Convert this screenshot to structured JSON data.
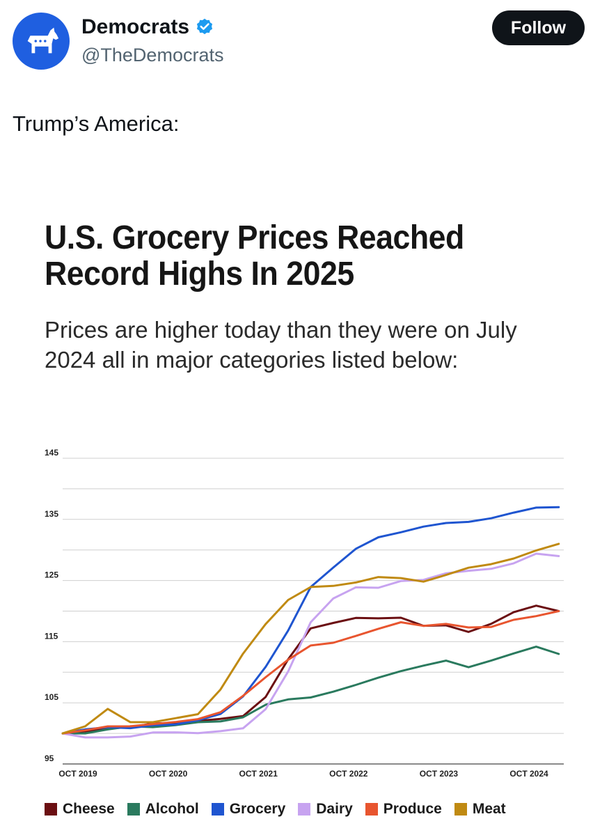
{
  "tweet": {
    "display_name": "Democrats",
    "handle": "@TheDemocrats",
    "follow_label": "Follow",
    "text": "Trump’s America:",
    "avatar_icon": "donkey-icon",
    "verified_icon": "verified-badge-icon",
    "accent_color": "#1f5fe0"
  },
  "graphic": {
    "headline": "U.S. Grocery Prices Reached Record Highs In 2025",
    "subhead": "Prices are higher today than they were on July 2024 all in major categories listed below:"
  },
  "chart_data": {
    "type": "line",
    "title": "U.S. Grocery Prices Reached Record Highs In 2025",
    "subtitle": "Prices are higher today than they were on July 2024 all in major categories listed below:",
    "xlabel": "",
    "ylabel": "",
    "x_tick_labels": [
      "OCT 2019",
      "OCT 2020",
      "OCT 2021",
      "OCT 2022",
      "OCT 2023",
      "OCT 2024"
    ],
    "y_tick_labels": [
      "145",
      "135",
      "125",
      "115",
      "105",
      "95"
    ],
    "y_ticks": [
      145,
      135,
      125,
      115,
      105,
      95
    ],
    "ylim": [
      95,
      145
    ],
    "grid": true,
    "legend_position": "bottom",
    "x": [
      "2019-10",
      "2020-01",
      "2020-04",
      "2020-07",
      "2020-10",
      "2021-01",
      "2021-04",
      "2021-07",
      "2021-10",
      "2022-01",
      "2022-04",
      "2022-07",
      "2022-10",
      "2023-01",
      "2023-04",
      "2023-07",
      "2023-10",
      "2024-01",
      "2024-04",
      "2024-07",
      "2024-10",
      "2025-01",
      "2025-04"
    ],
    "series": [
      {
        "name": "Cheese",
        "color": "#6b0f12",
        "values": [
          100,
          100.5,
          101,
          101,
          101.5,
          101.5,
          102,
          102.5,
          103,
          106,
          112,
          117,
          118,
          119,
          119,
          119,
          117.5,
          117.5,
          116.5,
          118,
          120,
          121,
          120
        ]
      },
      {
        "name": "Alcohol",
        "color": "#2a7a5e",
        "values": [
          100,
          100,
          100.5,
          101,
          101,
          101.5,
          102,
          102,
          102.5,
          104.5,
          105.5,
          106,
          107,
          108,
          109,
          110,
          111,
          112,
          111,
          112,
          113,
          114,
          113
        ]
      },
      {
        "name": "Grocery",
        "color": "#1f55d0",
        "values": [
          100,
          100.5,
          101,
          101,
          101.5,
          101.5,
          102,
          103,
          106,
          111,
          117,
          124,
          127,
          130,
          132,
          133,
          134,
          134.5,
          134.5,
          135,
          136,
          137,
          137
        ]
      },
      {
        "name": "Dairy",
        "color": "#c7a3f0",
        "values": [
          100,
          99.5,
          99.5,
          99.5,
          100,
          100,
          100,
          100.5,
          101,
          104,
          110,
          118,
          122,
          124,
          124,
          125,
          125,
          126,
          126.5,
          127,
          128,
          129.5,
          129
        ]
      },
      {
        "name": "Produce",
        "color": "#e8552f",
        "values": [
          100,
          100.5,
          101,
          101,
          101.5,
          102,
          102.5,
          103.5,
          106,
          109,
          112,
          114.5,
          115,
          116,
          117,
          118,
          117.5,
          118,
          117.5,
          117.5,
          118.5,
          119,
          120
        ]
      },
      {
        "name": "Meat",
        "color": "#c08a12",
        "values": [
          100,
          101,
          104,
          102,
          102,
          102.5,
          103,
          107,
          113,
          118,
          122,
          124,
          124,
          124.5,
          125.5,
          125.5,
          125,
          126,
          127,
          127.5,
          128.5,
          130,
          131
        ]
      }
    ]
  }
}
